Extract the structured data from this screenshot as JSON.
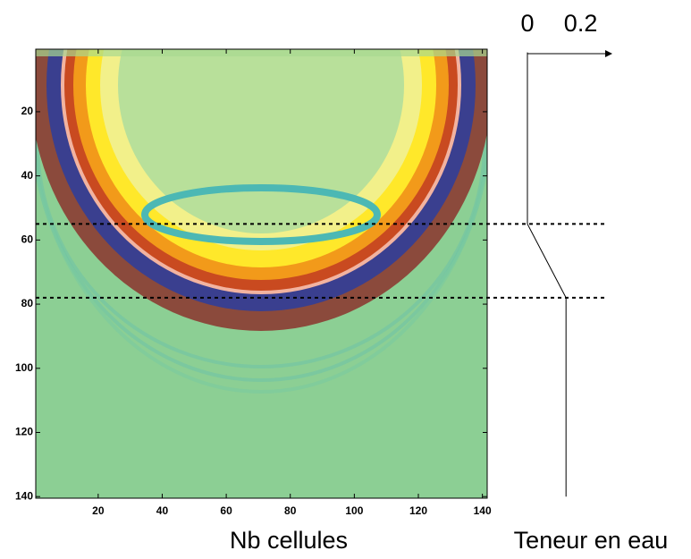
{
  "chart_data": [
    {
      "type": "heatmap",
      "xlabel": "Nb cellules",
      "xlim": [
        0.5,
        141.5
      ],
      "ylim": [
        0.5,
        140.5
      ],
      "xticks": [
        20,
        40,
        60,
        80,
        100,
        120,
        140
      ],
      "yticks": [
        20,
        40,
        60,
        80,
        100,
        120,
        140
      ]
    },
    {
      "type": "line",
      "xlabel": "Teneur en eau",
      "x": [
        0,
        0,
        0.15,
        0.15
      ],
      "y": [
        1.5,
        55,
        78,
        140
      ],
      "xlim": [
        0,
        0.33
      ],
      "ylim": [
        0.5,
        140.5
      ],
      "xticks": [
        0,
        0.2
      ]
    }
  ]
}
